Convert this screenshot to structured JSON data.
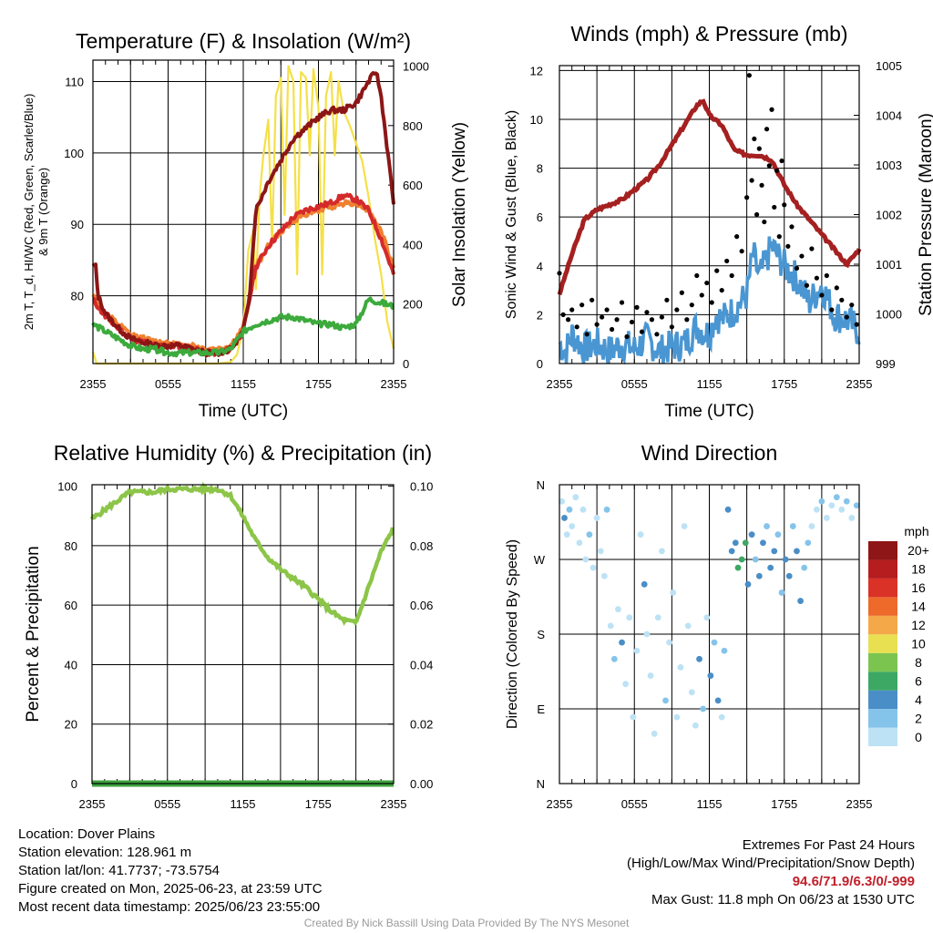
{
  "chart_data": [
    {
      "type": "line",
      "title": "Temperature (F) & Insolation (W/m²)",
      "xlabel": "Time (UTC)",
      "ylabel": "2m T, T_d, HI/WC (Red, Green, Scarlet/Blue) & 9m T (Orange)",
      "ylabel_right": "Solar Insolation (Yellow)",
      "x_ticks": [
        "2355",
        "0555",
        "1155",
        "1755",
        "2355"
      ],
      "y_ticks": [
        80,
        90,
        100,
        110
      ],
      "y_ticks_right": [
        0,
        200,
        400,
        600,
        800,
        1000
      ],
      "ylim": [
        70.5,
        113
      ],
      "ylim_right": [
        0,
        1020
      ],
      "grid": true,
      "series": [
        {
          "color": "#d42a2a",
          "axis": "left",
          "x": [
            0,
            1,
            2,
            3,
            4,
            5,
            6,
            7,
            8,
            9,
            10,
            11,
            12,
            13,
            14,
            15,
            16,
            17,
            18,
            19,
            20,
            21,
            22,
            23,
            24
          ],
          "values": [
            79.5,
            77,
            75.5,
            74,
            73.5,
            73,
            73,
            73,
            72.5,
            72,
            72,
            72.5,
            75,
            84,
            87,
            89,
            91,
            92,
            92.5,
            93,
            94,
            93.5,
            92,
            88,
            83
          ]
        },
        {
          "color": "#ef8030",
          "axis": "left",
          "x": [
            0,
            1,
            2,
            3,
            4,
            5,
            6,
            7,
            8,
            9,
            10,
            11,
            12,
            13,
            14,
            15,
            16,
            17,
            18,
            19,
            20,
            21,
            22,
            23,
            24
          ],
          "values": [
            80,
            77.5,
            76,
            74.5,
            74,
            73.5,
            73.5,
            73,
            73,
            72.5,
            72.5,
            73,
            75.5,
            84,
            87,
            89,
            90.5,
            91.5,
            92,
            92.5,
            93,
            93,
            92,
            89,
            84
          ]
        },
        {
          "color": "#8c1616",
          "axis": "left",
          "x": [
            0,
            0.2,
            0.4,
            1,
            2,
            3,
            4,
            5,
            6,
            7,
            8,
            9,
            10,
            11,
            12,
            12.5,
            13,
            14,
            15,
            16,
            17,
            18,
            19,
            20,
            21,
            22,
            22.6,
            23,
            24
          ],
          "values": [
            84,
            84.5,
            80,
            77.5,
            75.5,
            74,
            73.5,
            73,
            73,
            73,
            72.5,
            72,
            72,
            72.5,
            75,
            80,
            92,
            96,
            99,
            102,
            103.5,
            105,
            106,
            106,
            107,
            110,
            111.5,
            108,
            93
          ]
        },
        {
          "color": "#3caa3c",
          "axis": "left",
          "x": [
            0,
            1,
            2,
            3,
            4,
            5,
            6,
            7,
            8,
            9,
            10,
            11,
            12,
            13,
            14,
            15,
            16,
            17,
            18,
            19,
            20,
            21,
            22,
            23,
            24
          ],
          "values": [
            76,
            75,
            74,
            73,
            72.5,
            72.5,
            72,
            72,
            72,
            72,
            72,
            72.5,
            75,
            76,
            76.5,
            77,
            77,
            76.5,
            76,
            76,
            75.5,
            76,
            79.5,
            79,
            78.5
          ]
        },
        {
          "color": "#f5e048",
          "axis": "right",
          "x": [
            0,
            0.3,
            1,
            3,
            5,
            7,
            9,
            10,
            11,
            11.5,
            12,
            12.4,
            12.8,
            13,
            13.3,
            13.6,
            14,
            14.3,
            14.6,
            15,
            15.3,
            15.6,
            16,
            16.3,
            16.6,
            17,
            17.3,
            17.6,
            18,
            18.3,
            18.6,
            19,
            19.3,
            19.6,
            20,
            20.5,
            21,
            21.5,
            22,
            22.5,
            23,
            23.5,
            24
          ],
          "values": [
            40,
            0,
            0,
            0,
            0,
            0,
            0,
            0,
            5,
            30,
            120,
            380,
            450,
            250,
            560,
            700,
            820,
            400,
            900,
            960,
            500,
            1000,
            950,
            300,
            980,
            960,
            700,
            990,
            860,
            300,
            900,
            980,
            700,
            950,
            850,
            800,
            740,
            680,
            560,
            420,
            300,
            140,
            50
          ]
        }
      ]
    },
    {
      "type": "line",
      "title": "Winds (mph) & Pressure (mb)",
      "xlabel": "Time (UTC)",
      "ylabel": "Sonic Wind & Gust (Blue, Black)",
      "ylabel_right": "Station Pressure (Maroon)",
      "x_ticks": [
        "2355",
        "0555",
        "1155",
        "1755",
        "2355"
      ],
      "y_ticks": [
        0,
        2,
        4,
        6,
        8,
        10,
        12
      ],
      "y_ticks_right": [
        999,
        1000,
        1001,
        1002,
        1003,
        1004,
        1005
      ],
      "ylim": [
        0,
        12.2
      ],
      "ylim_right": [
        999,
        1005
      ],
      "grid": true,
      "series": [
        {
          "name": "pressure",
          "color": "#a52020",
          "axis": "right",
          "x": [
            0,
            1,
            2,
            3,
            4,
            5,
            6,
            7,
            8,
            9,
            10,
            11,
            11.5,
            12,
            13,
            14,
            15,
            16,
            17,
            18,
            19,
            20,
            21,
            22,
            23,
            24
          ],
          "values": [
            1000.4,
            1001.2,
            1001.9,
            1002.1,
            1002.2,
            1002.3,
            1002.5,
            1002.7,
            1003,
            1003.4,
            1003.8,
            1004.2,
            1004.3,
            1004,
            1003.8,
            1003.3,
            1003.2,
            1003.2,
            1003.1,
            1002.6,
            1002.2,
            1001.9,
            1001.6,
            1001.3,
            1001.0,
            1001.3
          ]
        },
        {
          "name": "wind",
          "color": "#4a96d2",
          "axis": "left",
          "x": [
            0,
            0.5,
            1,
            2,
            3,
            4,
            5,
            6,
            7,
            8,
            9,
            10,
            11,
            12,
            12.5,
            13,
            14,
            15,
            15.5,
            16,
            17,
            18,
            19,
            20,
            21,
            22,
            23,
            24
          ],
          "values": [
            0.8,
            0.5,
            1.2,
            0.6,
            0.8,
            0.5,
            0.8,
            0.6,
            1,
            0.5,
            0.7,
            0.8,
            1.5,
            1.2,
            2,
            1.8,
            2.2,
            2.8,
            4.5,
            3.5,
            4.8,
            4,
            3.5,
            2.5,
            3.2,
            2,
            1.8,
            1.3
          ]
        }
      ],
      "gust": {
        "x": [
          0,
          0.3,
          0.7,
          1,
          1.4,
          1.8,
          2.2,
          2.6,
          3,
          3.4,
          3.8,
          4.2,
          4.6,
          5,
          5.4,
          5.8,
          6.2,
          6.6,
          7,
          7.4,
          7.8,
          8.2,
          8.6,
          9,
          9.4,
          9.8,
          10.2,
          10.6,
          11,
          11.4,
          11.8,
          12.2,
          12.6,
          13,
          13.4,
          13.8,
          14.2,
          14.6,
          15,
          15.2,
          15.4,
          15.6,
          15.8,
          16,
          16.2,
          16.4,
          16.6,
          16.8,
          17,
          17.2,
          17.4,
          17.6,
          17.8,
          18,
          18.3,
          18.6,
          19,
          19.4,
          19.8,
          20.2,
          20.6,
          21,
          21.4,
          21.8,
          22.2,
          22.6,
          23,
          23.4,
          23.8
        ],
        "values": [
          3.7,
          2,
          1.8,
          2.2,
          1.5,
          2.4,
          1.2,
          2.6,
          1.6,
          1.9,
          2.2,
          1.4,
          1.8,
          2.5,
          1.1,
          1.7,
          2.3,
          1.3,
          2.1,
          1.8,
          1.2,
          1.9,
          2.6,
          1.5,
          2.2,
          2.9,
          1.8,
          2.4,
          3.6,
          2.8,
          3.3,
          2.5,
          3.8,
          3,
          4.2,
          3.6,
          5.2,
          4.6,
          6.8,
          11.8,
          7.5,
          9.2,
          6.1,
          8.8,
          7.3,
          5.8,
          9.6,
          8.1,
          10.4,
          6.4,
          7.9,
          5.2,
          8.3,
          6.5,
          4.8,
          5.6,
          3.9,
          4.4,
          3.2,
          4.7,
          3.5,
          2.8,
          3.6,
          2.2,
          3.1,
          2.6,
          1.9,
          2.4,
          1.6
        ]
      }
    },
    {
      "type": "line",
      "title": "Relative Humidity (%) & Precipitation (in)",
      "xlabel": "",
      "ylabel": "Percent & Precipitation",
      "x_ticks": [
        "2355",
        "0555",
        "1155",
        "1755",
        "2355"
      ],
      "y_ticks": [
        0,
        20,
        40,
        60,
        80,
        100
      ],
      "y_ticks_right": [
        "0.00",
        "0.02",
        "0.04",
        "0.06",
        "0.08",
        "0.10"
      ],
      "ylim": [
        0,
        100.5
      ],
      "ylim_right": [
        0,
        0.1
      ],
      "grid": true,
      "series": [
        {
          "name": "relative humidity",
          "color": "#8cc548",
          "axis": "left",
          "x": [
            0,
            1,
            2,
            3,
            4,
            5,
            6,
            7,
            8,
            9,
            10,
            11,
            12,
            13,
            14,
            15,
            16,
            17,
            18,
            19,
            20,
            21,
            22,
            23,
            24
          ],
          "values": [
            89,
            92,
            95,
            98,
            98,
            98,
            99,
            99,
            99,
            99,
            99,
            97,
            90,
            82,
            76,
            72,
            69,
            66,
            62,
            58,
            55,
            54,
            66,
            78,
            86
          ]
        },
        {
          "name": "precipitation",
          "color": "#3ca03c",
          "axis": "right",
          "x": [
            0,
            24
          ],
          "values": [
            0,
            0
          ]
        }
      ]
    },
    {
      "type": "scatter",
      "title": "Wind Direction",
      "xlabel": "",
      "ylabel": "Direction (Colored By Speed)",
      "x_ticks": [
        "2355",
        "0555",
        "1155",
        "1755",
        "2355"
      ],
      "y_ticks": [
        "N",
        "E",
        "S",
        "W",
        "N"
      ],
      "colorbar": {
        "unit": "mph",
        "labels": [
          "0",
          "2",
          "4",
          "6",
          "8",
          "10",
          "12",
          "14",
          "16",
          "18",
          "20+"
        ],
        "colors": [
          "#bde2f5",
          "#85c4ea",
          "#4a8ec8",
          "#3ca864",
          "#7cc450",
          "#e8e050",
          "#f5a848",
          "#ee6a2a",
          "#da3226",
          "#b51d1f",
          "#8e1616"
        ]
      },
      "points": [
        [
          0.2,
          340,
          0
        ],
        [
          0.4,
          320,
          2
        ],
        [
          0.6,
          300,
          0
        ],
        [
          0.8,
          330,
          1
        ],
        [
          1,
          310,
          0
        ],
        [
          1.3,
          345,
          0
        ],
        [
          1.6,
          290,
          0
        ],
        [
          1.9,
          330,
          0
        ],
        [
          2.1,
          270,
          0
        ],
        [
          2.4,
          300,
          1
        ],
        [
          2.7,
          260,
          0
        ],
        [
          3,
          320,
          0
        ],
        [
          3.3,
          280,
          0
        ],
        [
          3.6,
          250,
          0
        ],
        [
          3.8,
          330,
          1
        ],
        [
          4.1,
          190,
          0
        ],
        [
          4.4,
          150,
          1
        ],
        [
          4.7,
          210,
          0
        ],
        [
          5,
          170,
          2
        ],
        [
          5.3,
          120,
          0
        ],
        [
          5.6,
          200,
          0
        ],
        [
          5.9,
          80,
          0
        ],
        [
          6.2,
          160,
          0
        ],
        [
          6.5,
          300,
          0
        ],
        [
          6.8,
          240,
          2
        ],
        [
          7,
          180,
          0
        ],
        [
          7.3,
          130,
          0
        ],
        [
          7.6,
          60,
          0
        ],
        [
          7.9,
          200,
          0
        ],
        [
          8.2,
          280,
          0
        ],
        [
          8.5,
          100,
          1
        ],
        [
          8.8,
          170,
          0
        ],
        [
          9.1,
          230,
          0
        ],
        [
          9.4,
          80,
          0
        ],
        [
          9.7,
          140,
          0
        ],
        [
          10,
          310,
          0
        ],
        [
          10.3,
          190,
          0
        ],
        [
          10.6,
          110,
          0
        ],
        [
          10.9,
          70,
          0
        ],
        [
          11.2,
          150,
          2
        ],
        [
          11.5,
          90,
          1
        ],
        [
          11.8,
          200,
          0
        ],
        [
          12.1,
          130,
          2
        ],
        [
          12.4,
          170,
          1
        ],
        [
          12.7,
          100,
          2
        ],
        [
          13,
          80,
          0
        ],
        [
          13.2,
          160,
          1
        ],
        [
          13.5,
          330,
          2
        ],
        [
          13.8,
          280,
          2
        ],
        [
          14.1,
          290,
          2
        ],
        [
          14.3,
          260,
          3
        ],
        [
          14.6,
          270,
          3
        ],
        [
          14.9,
          290,
          3
        ],
        [
          15.1,
          240,
          2
        ],
        [
          15.4,
          300,
          2
        ],
        [
          15.7,
          270,
          1
        ],
        [
          16,
          250,
          2
        ],
        [
          16.3,
          290,
          2
        ],
        [
          16.6,
          310,
          1
        ],
        [
          16.9,
          260,
          2
        ],
        [
          17.2,
          280,
          2
        ],
        [
          17.5,
          300,
          1
        ],
        [
          17.8,
          230,
          1
        ],
        [
          18.1,
          270,
          2
        ],
        [
          18.4,
          250,
          2
        ],
        [
          18.7,
          310,
          1
        ],
        [
          19,
          280,
          2
        ],
        [
          19.3,
          220,
          2
        ],
        [
          19.6,
          260,
          1
        ],
        [
          19.9,
          290,
          1
        ],
        [
          20.2,
          310,
          0
        ],
        [
          20.6,
          330,
          0
        ],
        [
          21,
          340,
          1
        ],
        [
          21.4,
          320,
          0
        ],
        [
          21.8,
          335,
          0
        ],
        [
          22.2,
          345,
          1
        ],
        [
          22.6,
          330,
          0
        ],
        [
          23,
          340,
          1
        ],
        [
          23.4,
          320,
          0
        ],
        [
          23.8,
          335,
          1
        ]
      ]
    }
  ],
  "info": {
    "location": "Location: Dover Plains",
    "elevation": "Station elevation: 128.961 m",
    "latlon": "Station lat/lon: 41.7737; -73.5754",
    "created": "Figure created on Mon, 2025-06-23, at 23:59 UTC",
    "recent": "Most recent data timestamp: 2025/06/23 23:55:00"
  },
  "extremes": {
    "title": "Extremes For Past 24 Hours",
    "subtitle": "(High/Low/Max Wind/Precipitation/Snow Depth)",
    "values": "94.6/71.9/6.3/0/-999",
    "gust": "Max Gust: 11.8 mph On 06/23 at 1530 UTC"
  },
  "credit": "Created By Nick Bassill Using Data Provided By The NYS Mesonet"
}
